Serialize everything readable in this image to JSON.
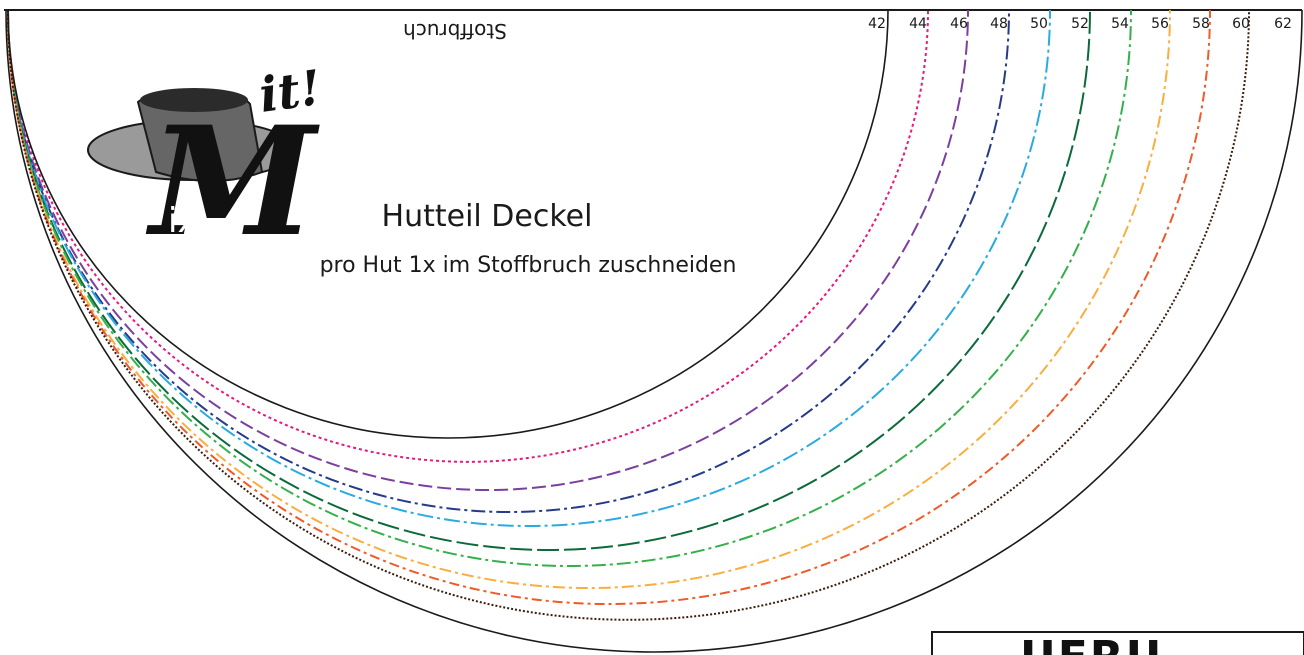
{
  "pattern": {
    "fold_label": "Stoffbruch",
    "title": "Hutteil Deckel",
    "subtitle": "pro Hut 1x im Stoffbruch zuschneiden",
    "sizes": [
      {
        "label": "42",
        "color": "#e6197f",
        "dash": "3 3"
      },
      {
        "label": "44",
        "color": "#7b3fa0",
        "dash": "14 5"
      },
      {
        "label": "46",
        "color": "#263a8a",
        "dash": "14 4 3 4"
      },
      {
        "label": "48",
        "color": "#29aae1",
        "dash": "16 4 3 4"
      },
      {
        "label": "50",
        "color": "#0b6a3a",
        "dash": "22 5"
      },
      {
        "label": "52",
        "color": "#34b04a",
        "dash": "14 4 3 4"
      },
      {
        "label": "54",
        "color": "#f9ae3f",
        "dash": "12 4 3 4"
      },
      {
        "label": "56",
        "color": "#ef5a28",
        "dash": "10 4 3 4"
      },
      {
        "label": "58",
        "color": "#3a1d0c",
        "dash": "2 2"
      }
    ],
    "outer_column_labels": [
      "60",
      "62"
    ]
  },
  "logo": {
    "letter": "M",
    "exclaim": "it!",
    "sub": "ix"
  },
  "stamp": {
    "text": "UERU"
  },
  "colors": {
    "line": "#1a1a1a",
    "hat_grey": "#8a8a8a",
    "hat_dark": "#2b2b2b"
  }
}
